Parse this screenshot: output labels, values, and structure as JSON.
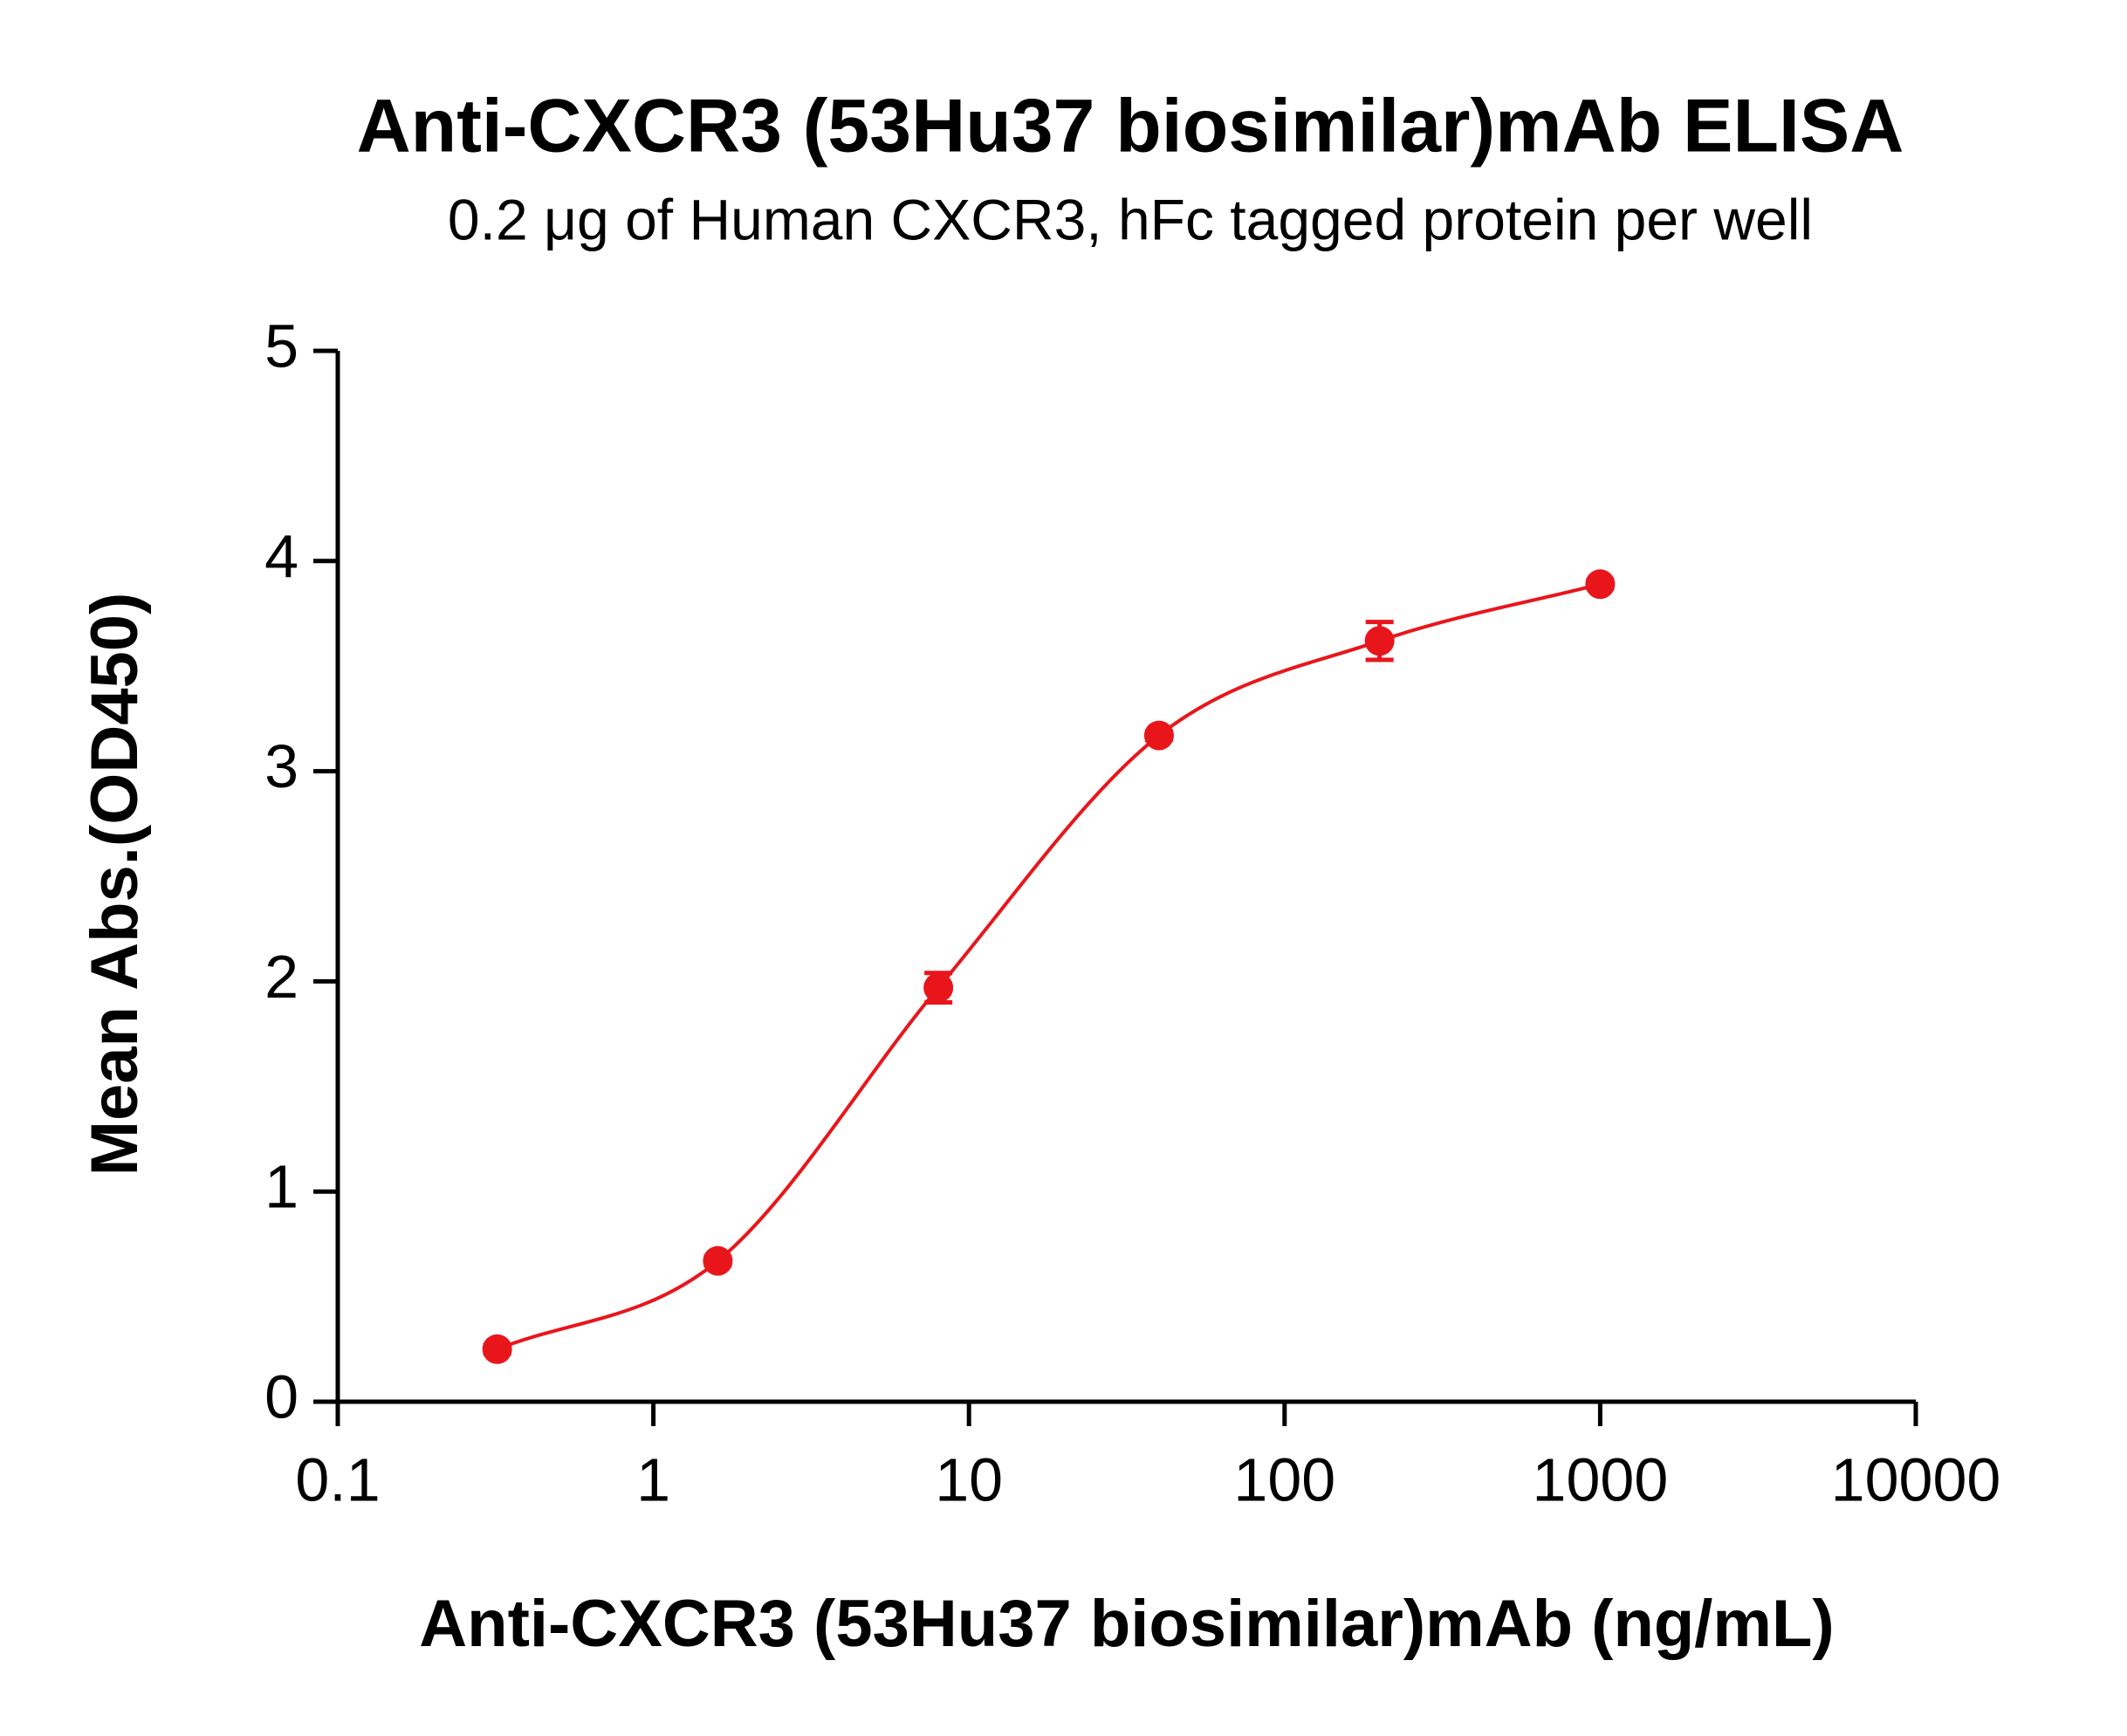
{
  "chart_data": {
    "type": "scatter",
    "title": "Anti-CXCR3 (53Hu37 biosimilar)mAb ELISA",
    "subtitle": "0.2 μg of Human CXCR3, hFc tagged protein per well",
    "x_label": "Anti-CXCR3 (53Hu37 biosimilar)mAb (ng/mL)",
    "y_label": "Mean Abs.(OD450)",
    "x_scale": "log",
    "xlim": [
      0.1,
      10000
    ],
    "xticks": [
      0.1,
      1,
      10,
      100,
      1000,
      10000
    ],
    "ylim": [
      0,
      5
    ],
    "yticks": [
      0,
      1,
      2,
      3,
      4,
      5
    ],
    "grid": false,
    "series": [
      {
        "color": "#e8161b",
        "x": [
          0.32,
          1.6,
          8,
          40,
          200,
          1000
        ],
        "values": [
          0.25,
          0.67,
          1.97,
          3.17,
          3.62,
          3.89
        ],
        "errors": [
          0.02,
          0.02,
          0.07,
          0.02,
          0.09,
          0.02
        ]
      }
    ]
  }
}
